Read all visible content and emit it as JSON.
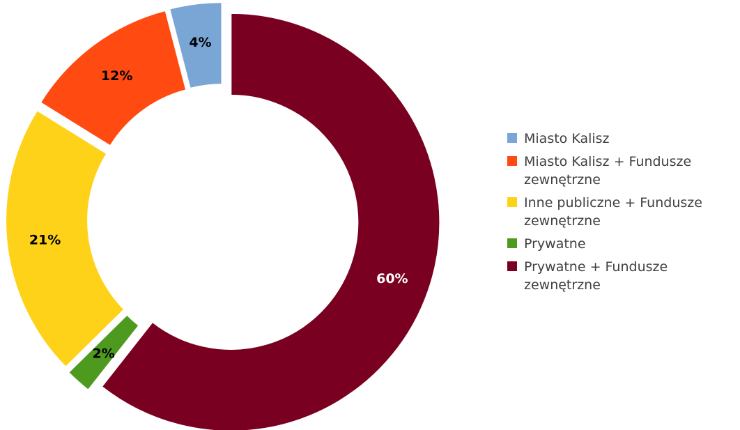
{
  "chart_data": {
    "type": "donut",
    "start_angle_deg": 0,
    "direction": "clockwise",
    "legend_position": "right",
    "slices": [
      {
        "label": "Prywatne + Fundusze\nzewnętrzne",
        "value": 60,
        "pct_label": "60%",
        "color": "#7a0021",
        "label_color": "#ffffff"
      },
      {
        "label": "Prywatne",
        "value": 2,
        "pct_label": "2%",
        "color": "#4e9a1f",
        "label_color": "#000000"
      },
      {
        "label": "Inne publiczne + Fundusze\nzewnętrzne",
        "value": 21,
        "pct_label": "21%",
        "color": "#ffd21a",
        "label_color": "#000000"
      },
      {
        "label": "Miasto Kalisz + Fundusze\nzewnętrzne",
        "value": 12,
        "pct_label": "12%",
        "color": "#ff4a12",
        "label_color": "#000000"
      },
      {
        "label": "Miasto Kalisz",
        "value": 4,
        "pct_label": "4%",
        "color": "#7aa6d6",
        "label_color": "#000000"
      }
    ],
    "legend_order": [
      4,
      3,
      2,
      1,
      0
    ]
  }
}
